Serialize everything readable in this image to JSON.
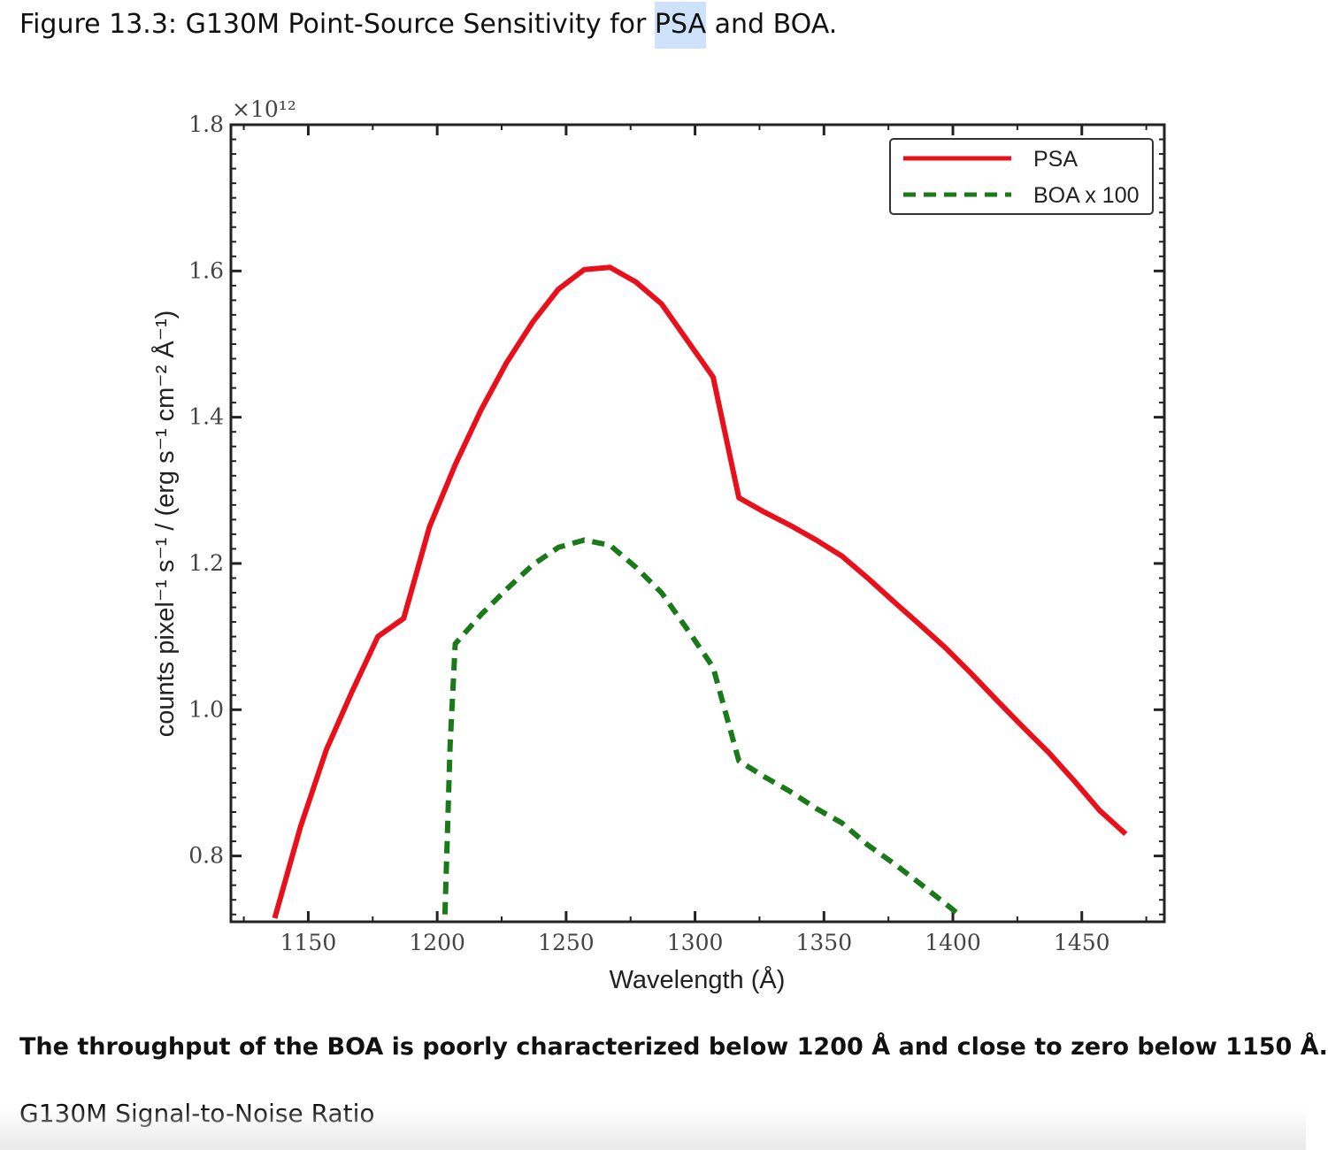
{
  "figure": {
    "title_before": "Figure 13.3: G130M Point-Source Sensitivity for ",
    "title_highlight": "PSA",
    "title_after": " and BOA."
  },
  "caption": "The throughput of the BOA is poorly characterized below 1200 Å and close to zero below 1150 Å.",
  "section_heading": "G130M Signal-to-Noise Ratio",
  "colors": {
    "psa": "#e8101a",
    "boa": "#1a7a1a",
    "highlight": "#cfe2fb"
  },
  "chart_data": {
    "type": "line",
    "title": "Figure 13.3: G130M Point-Source Sensitivity for PSA and BOA.",
    "xlabel": "Wavelength (Å)",
    "ylabel": "counts pixel⁻¹ s⁻¹ / (erg s⁻¹ cm⁻² Å⁻¹)",
    "y_multiplier": "×10¹²",
    "xlim": [
      1120,
      1482
    ],
    "ylim": [
      0.71,
      1.8
    ],
    "xticks": [
      1150,
      1200,
      1250,
      1300,
      1350,
      1400,
      1450
    ],
    "xtick_labels": [
      "1150",
      "1200",
      "1250",
      "1300",
      "1350",
      "1400",
      "1450"
    ],
    "yticks": [
      0.8,
      1.0,
      1.2,
      1.4,
      1.6,
      1.8
    ],
    "ytick_labels": [
      "0.8",
      "1.0",
      "1.2",
      "1.4",
      "1.6",
      "1.8"
    ],
    "legend_position": "top-right",
    "series": [
      {
        "name": "PSA",
        "style": "solid",
        "x": [
          1137,
          1147,
          1157,
          1167,
          1177,
          1187,
          1197,
          1207,
          1217,
          1227,
          1237,
          1247,
          1257,
          1267,
          1277,
          1287,
          1297,
          1307,
          1317,
          1327,
          1337,
          1347,
          1357,
          1367,
          1377,
          1387,
          1397,
          1407,
          1417,
          1427,
          1437,
          1447,
          1457,
          1467
        ],
        "y": [
          0.715,
          0.84,
          0.945,
          1.025,
          1.1,
          1.125,
          1.25,
          1.335,
          1.41,
          1.475,
          1.53,
          1.575,
          1.602,
          1.605,
          1.585,
          1.555,
          1.505,
          1.455,
          1.29,
          1.27,
          1.252,
          1.232,
          1.21,
          1.18,
          1.148,
          1.117,
          1.085,
          1.05,
          1.013,
          0.977,
          0.942,
          0.903,
          0.862,
          0.83
        ]
      },
      {
        "name": "BOA x 100",
        "style": "dashed",
        "x": [
          1203,
          1205,
          1207,
          1217,
          1227,
          1237,
          1247,
          1257,
          1267,
          1277,
          1287,
          1297,
          1307,
          1317,
          1327,
          1337,
          1347,
          1357,
          1367,
          1377,
          1387,
          1397,
          1403
        ],
        "y": [
          0.72,
          0.95,
          1.09,
          1.13,
          1.165,
          1.198,
          1.222,
          1.232,
          1.225,
          1.195,
          1.16,
          1.11,
          1.058,
          0.93,
          0.908,
          0.888,
          0.865,
          0.845,
          0.815,
          0.79,
          0.763,
          0.735,
          0.718
        ]
      }
    ]
  }
}
